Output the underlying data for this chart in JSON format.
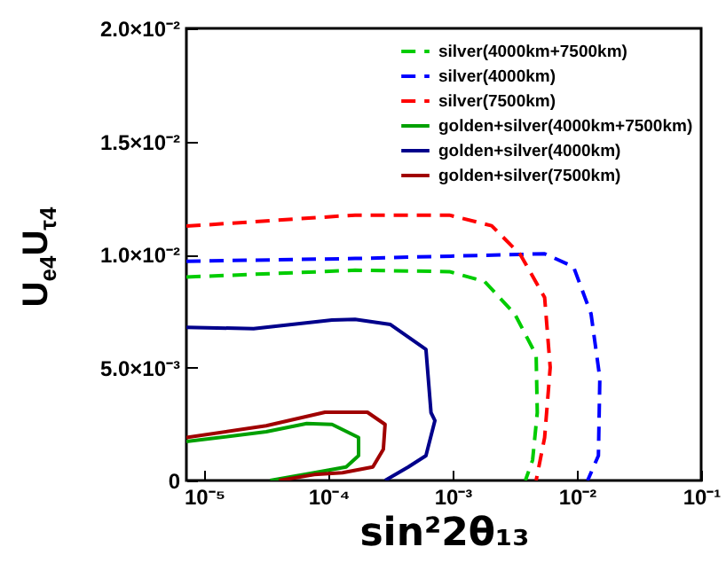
{
  "chart_data": {
    "type": "line",
    "xlabel": "sin²2θ₁₃",
    "ylabel": "U$_{e4}$U$_{τ4}$",
    "log": "x",
    "xlim": [
      7.2e-06,
      0.1
    ],
    "xticks": [
      {
        "value": 1e-05,
        "label": "10⁻⁵"
      },
      {
        "value": 0.0001,
        "label": "10⁻⁴"
      },
      {
        "value": 0.001,
        "label": "10⁻³"
      },
      {
        "value": 0.01,
        "label": "10⁻²"
      },
      {
        "value": 0.1,
        "label": "10⁻¹"
      }
    ],
    "ylim": [
      0,
      0.02
    ],
    "yticks": [
      0,
      {
        "value": 0.005,
        "label": "5.0×10⁻³"
      },
      {
        "value": 0.01,
        "label": "1.0×10⁻²"
      },
      {
        "value": 0.015,
        "label": "1.5×10⁻²"
      },
      {
        "value": 0.02,
        "label": "2.0×10⁻²"
      }
    ],
    "legend": "top right",
    "grid": false,
    "series": [
      {
        "name": "silver(4000km+7500km)",
        "color": "#00cc00",
        "line_style": "dashed",
        "x": [
          7.2e-06,
          0.000164,
          0.00094,
          0.00181,
          0.00316,
          0.0047,
          0.0048,
          0.0044,
          0.00385
        ],
        "values": [
          0.009,
          0.0093,
          0.00924,
          0.0088,
          0.00737,
          0.00555,
          0.003,
          0.0009,
          0
        ]
      },
      {
        "name": "silver(4000km)",
        "color": "#0000ff",
        "line_style": "dashed",
        "x": [
          7.2e-06,
          0.000164,
          0.0035,
          0.0055,
          0.0094,
          0.013,
          0.0153,
          0.0149,
          0.0122
        ],
        "values": [
          0.0097,
          0.00982,
          0.01,
          0.01003,
          0.00945,
          0.00737,
          0.00453,
          0.0011,
          0
        ]
      },
      {
        "name": "silver(7500km)",
        "color": "#ff0000",
        "line_style": "dashed",
        "x": [
          7.2e-06,
          0.000164,
          0.00094,
          0.00206,
          0.0035,
          0.0055,
          0.0061,
          0.0055,
          0.0047
        ],
        "values": [
          0.01125,
          0.01174,
          0.01174,
          0.01127,
          0.01,
          0.0081,
          0.005,
          0.0019,
          0
        ]
      },
      {
        "name": "golden+silver(4000km+7500km)",
        "color": "#00a000",
        "line_style": "solid",
        "x": [
          7.2e-06,
          3.16e-05,
          6.7e-05,
          0.000107,
          0.000175,
          0.000175,
          0.000139,
          7.7e-05,
          3.4e-05
        ],
        "values": [
          0.00172,
          0.00216,
          0.00252,
          0.00248,
          0.0019,
          0.0011,
          0.0006,
          0.00034,
          0
        ]
      },
      {
        "name": "golden+silver(4000km)",
        "color": "#00008b",
        "line_style": "solid",
        "x": [
          7.2e-06,
          2.5e-05,
          0.000107,
          0.000164,
          0.000316,
          0.00061,
          0.00067,
          0.00072,
          0.00061,
          0.00044,
          0.000286
        ],
        "values": [
          0.00677,
          0.00672,
          0.0071,
          0.00713,
          0.0069,
          0.0058,
          0.003,
          0.00265,
          0.0011,
          0.0006,
          0
        ]
      },
      {
        "name": "golden+silver(7500km)",
        "color": "#a00000",
        "line_style": "solid",
        "x": [
          7.2e-06,
          3.16e-05,
          9.4e-05,
          0.000206,
          0.000286,
          0.000277,
          0.000228,
          0.00013,
          7.7e-05,
          4e-05
        ],
        "values": [
          0.0019,
          0.00242,
          0.00302,
          0.00302,
          0.00248,
          0.00138,
          0.0006,
          0.00034,
          0.00026,
          0
        ]
      }
    ]
  }
}
